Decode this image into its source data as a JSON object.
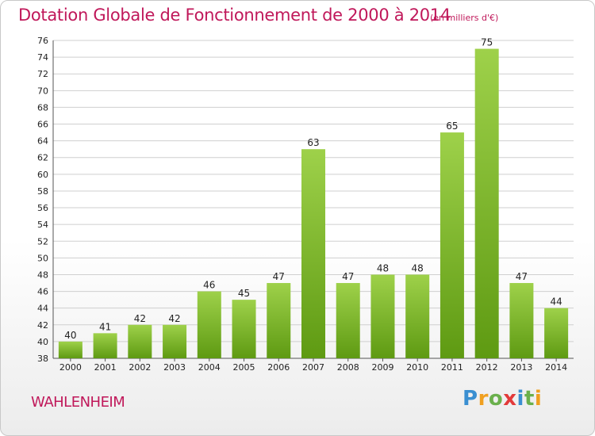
{
  "title": "Dotation Globale de Fonctionnement de 2000 à 2014",
  "subtitle": "(en milliers d'€)",
  "commune": "WAHLENHEIM",
  "logo": {
    "letters": [
      "P",
      "r",
      "o",
      "x",
      "i",
      "t",
      "i"
    ],
    "colors": [
      "#3a8fd1",
      "#f0a020",
      "#6ab04c",
      "#e23a3a",
      "#3a8fd1",
      "#6ab04c",
      "#f0a020"
    ]
  },
  "colors": {
    "title": "#c0185a",
    "bar_top": "#9ed14a",
    "bar_bottom": "#5e9a12",
    "grid": "#cfcfcf"
  },
  "chart_data": {
    "type": "bar",
    "title": "Dotation Globale de Fonctionnement de 2000 à 2014",
    "subtitle": "(en milliers d'€)",
    "xlabel": "",
    "ylabel": "",
    "categories": [
      "2000",
      "2001",
      "2002",
      "2003",
      "2004",
      "2005",
      "2006",
      "2007",
      "2008",
      "2009",
      "2010",
      "2011",
      "2012",
      "2013",
      "2014"
    ],
    "values": [
      40,
      41,
      42,
      42,
      46,
      45,
      47,
      63,
      47,
      48,
      48,
      65,
      75,
      47,
      44
    ],
    "ylim": [
      38,
      76
    ],
    "yticks": [
      38,
      40,
      42,
      44,
      46,
      48,
      50,
      52,
      54,
      56,
      58,
      60,
      62,
      64,
      66,
      68,
      70,
      72,
      74,
      76
    ],
    "grid": true,
    "legend": "none"
  }
}
